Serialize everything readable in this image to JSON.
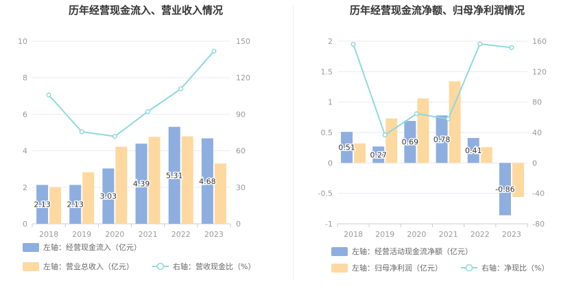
{
  "chart_data": [
    {
      "type": "bar",
      "title": "历年经营现金流入、营业收入情况",
      "categories": [
        "2018",
        "2019",
        "2020",
        "2021",
        "2022",
        "2023"
      ],
      "left_axis": {
        "ylim": [
          0,
          10
        ],
        "ticks": [
          0,
          2,
          4,
          6,
          8,
          10
        ]
      },
      "right_axis": {
        "ylim": [
          0,
          150
        ],
        "ticks": [
          0,
          30,
          60,
          90,
          120,
          150
        ]
      },
      "grid": true,
      "legend_position": "bottom",
      "series": [
        {
          "name": "左轴：经营现金流入（亿元）",
          "kind": "bar",
          "axis": "left",
          "color": "#8EAEE0",
          "values": [
            2.13,
            2.13,
            3.03,
            4.39,
            5.31,
            4.68
          ],
          "labels": [
            "2.13",
            "2.13",
            "3.03",
            "4.39",
            "5.31",
            "4.68"
          ]
        },
        {
          "name": "左轴：营业总收入（亿元）",
          "kind": "bar",
          "axis": "left",
          "color": "#FDD9A0",
          "values": [
            2.0,
            2.82,
            4.22,
            4.76,
            4.79,
            3.3
          ]
        },
        {
          "name": "右轴：营收现金比（%）",
          "kind": "line",
          "axis": "right",
          "color": "#8CD9DE",
          "values": [
            105.8,
            75.6,
            71.8,
            92.2,
            110.9,
            141.8
          ]
        }
      ]
    },
    {
      "type": "bar",
      "title": "历年经营现金流净额、归母净利润情况",
      "categories": [
        "2018",
        "2019",
        "2020",
        "2021",
        "2022",
        "2023"
      ],
      "left_axis": {
        "ylim": [
          -1,
          2
        ],
        "ticks": [
          -1,
          -0.5,
          0,
          0.5,
          1,
          1.5,
          2
        ],
        "tick_labels": [
          "-1",
          "-0.5",
          "0",
          "0.5",
          "1",
          "1.5",
          "2"
        ]
      },
      "right_axis": {
        "ylim": [
          -80,
          160
        ],
        "ticks": [
          -80,
          -40,
          0,
          40,
          80,
          120,
          160
        ]
      },
      "grid": true,
      "legend_position": "bottom",
      "series": [
        {
          "name": "左轴：经营活动现金流净额（亿元）",
          "kind": "bar",
          "axis": "left",
          "color": "#8EAEE0",
          "values": [
            0.51,
            0.27,
            0.69,
            0.78,
            0.41,
            -0.86
          ],
          "labels": [
            "0.51",
            "0.27",
            "0.69",
            "0.78",
            "0.41",
            "-0.86"
          ]
        },
        {
          "name": "左轴：归母净利润（亿元）",
          "kind": "bar",
          "axis": "left",
          "color": "#FDD9A0",
          "values": [
            0.32,
            0.73,
            1.06,
            1.34,
            0.26,
            -0.56
          ]
        },
        {
          "name": "右轴：净现比（%）",
          "kind": "line",
          "axis": "right",
          "color": "#8CD9DE",
          "values": [
            156.0,
            36.8,
            64.6,
            57.8,
            156.4,
            151.6
          ]
        }
      ]
    }
  ]
}
